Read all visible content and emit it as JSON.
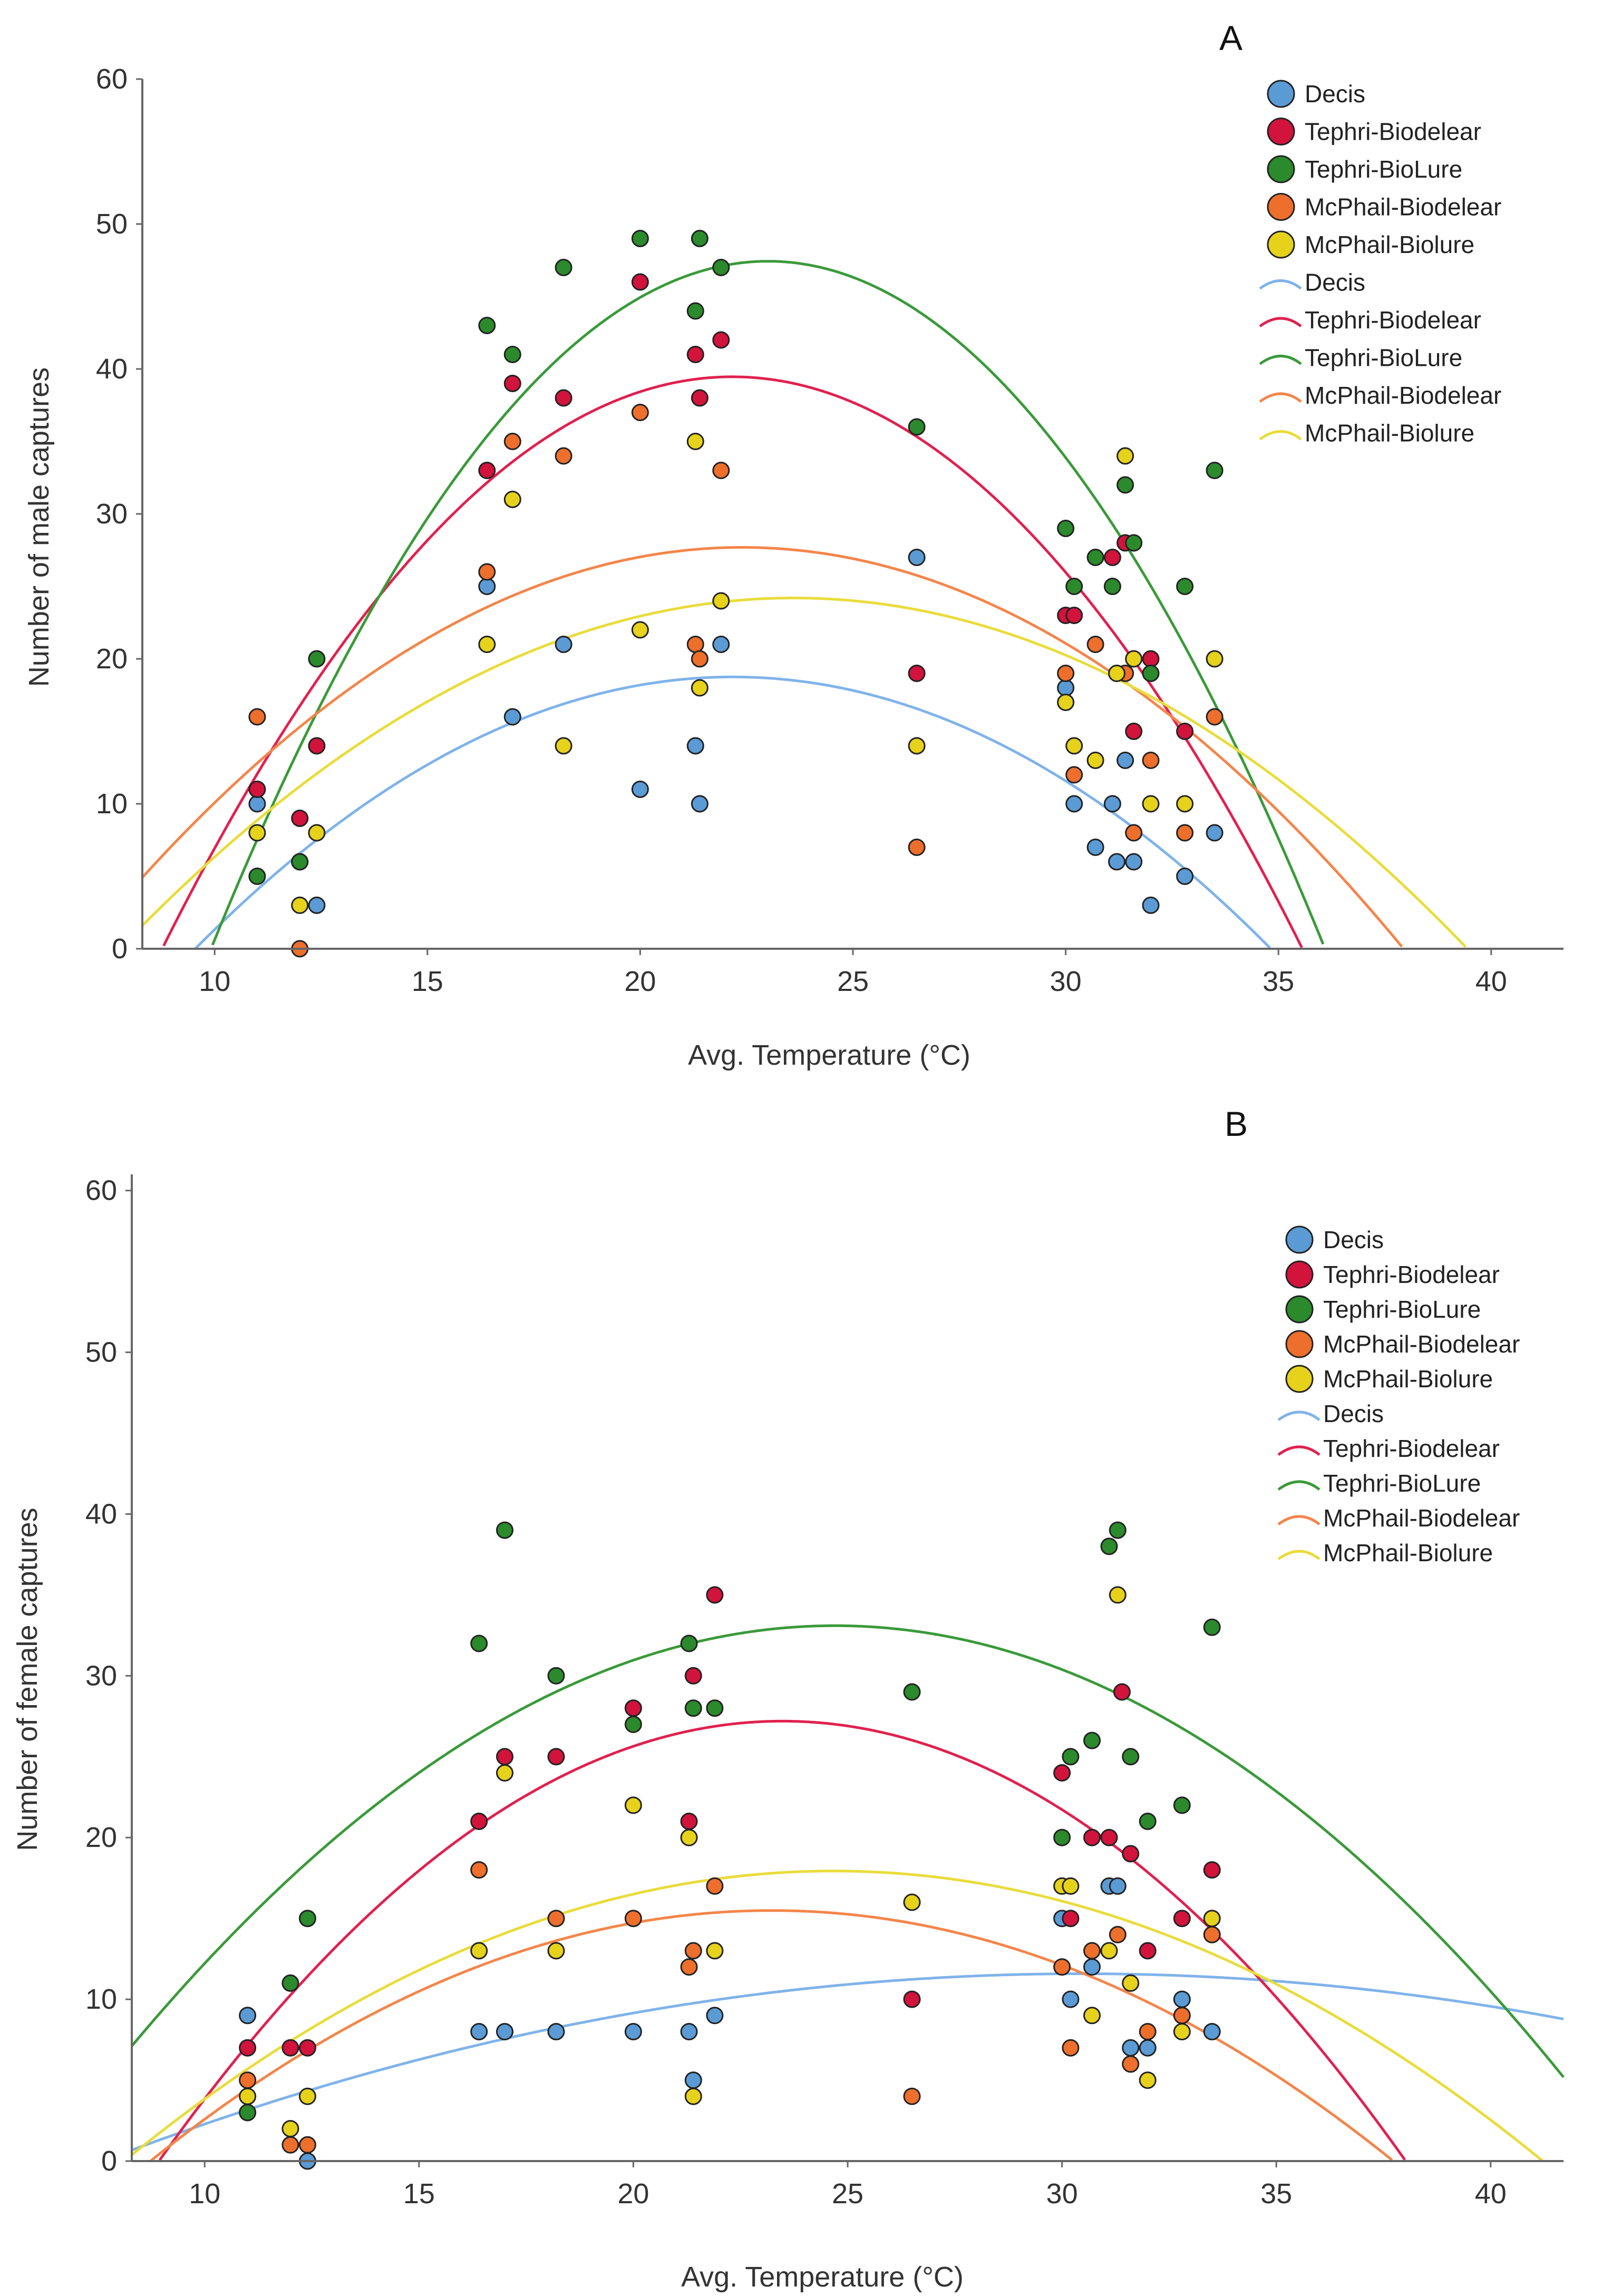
{
  "colors": {
    "Decis": "#5b9bd5",
    "Tephri-Biodelear": "#d2133c",
    "Tephri-BioLure": "#2b8a2b",
    "McPhail-Biodelear": "#ee6f2c",
    "McPhail-Biolure": "#e6d21a",
    "line_Decis": "#7fb3ea",
    "line_Tephri-Biodelear": "#e0214f",
    "line_Tephri-BioLure": "#3a9a3a",
    "line_McPhail-Biodelear": "#f4854a",
    "line_McPhail-Biolure": "#e9dc3a",
    "axis": "#666666",
    "text": "#333333"
  },
  "legend_entries": [
    "Decis",
    "Tephri-Biodelear",
    "Tephri-BioLure",
    "McPhail-Biodelear",
    "McPhail-Biolure"
  ],
  "chart_data": [
    {
      "panel": "A",
      "type": "scatter",
      "title": "A",
      "xlabel": "Avg. Temperature (°C)",
      "ylabel": "Number of male captures",
      "xlim": [
        8.3,
        41.7
      ],
      "ylim": [
        0,
        60
      ],
      "xticks": [
        10,
        15,
        20,
        25,
        30,
        35,
        40
      ],
      "yticks": [
        0,
        10,
        20,
        30,
        40,
        50,
        60
      ],
      "legend_position": "top-right",
      "series": [
        {
          "name": "Decis",
          "points": [
            [
              11,
              10
            ],
            [
              12,
              6
            ],
            [
              12.4,
              3
            ],
            [
              16.4,
              25
            ],
            [
              17,
              16
            ],
            [
              18.2,
              21
            ],
            [
              20,
              11
            ],
            [
              21.3,
              14
            ],
            [
              21.4,
              10
            ],
            [
              21.9,
              21
            ],
            [
              26.5,
              27
            ],
            [
              30,
              18
            ],
            [
              30.2,
              10
            ],
            [
              30.7,
              7
            ],
            [
              31.1,
              10
            ],
            [
              31.2,
              6
            ],
            [
              31.4,
              13
            ],
            [
              31.6,
              6
            ],
            [
              32,
              3
            ],
            [
              32.8,
              5
            ],
            [
              33.5,
              8
            ]
          ]
        },
        {
          "name": "Tephri-Biodelear",
          "points": [
            [
              11,
              11
            ],
            [
              12,
              9
            ],
            [
              12.4,
              14
            ],
            [
              16.4,
              33
            ],
            [
              17,
              39
            ],
            [
              18.2,
              38
            ],
            [
              20,
              46
            ],
            [
              21.3,
              41
            ],
            [
              21.4,
              38
            ],
            [
              21.9,
              42
            ],
            [
              26.5,
              19
            ],
            [
              30,
              23
            ],
            [
              30.2,
              23
            ],
            [
              31.1,
              27
            ],
            [
              31.4,
              28
            ],
            [
              31.6,
              15
            ],
            [
              32,
              20
            ],
            [
              32.8,
              15
            ]
          ]
        },
        {
          "name": "Tephri-BioLure",
          "points": [
            [
              11,
              5
            ],
            [
              12,
              6
            ],
            [
              12.4,
              20
            ],
            [
              16.4,
              43
            ],
            [
              17,
              41
            ],
            [
              18.2,
              47
            ],
            [
              20,
              49
            ],
            [
              21.3,
              44
            ],
            [
              21.4,
              49
            ],
            [
              21.9,
              47
            ],
            [
              26.5,
              36
            ],
            [
              30,
              29
            ],
            [
              30.2,
              25
            ],
            [
              30.7,
              27
            ],
            [
              31.1,
              25
            ],
            [
              31.4,
              32
            ],
            [
              31.6,
              28
            ],
            [
              32,
              19
            ],
            [
              32.8,
              25
            ],
            [
              33.5,
              33
            ]
          ]
        },
        {
          "name": "McPhail-Biodelear",
          "points": [
            [
              11,
              16
            ],
            [
              12,
              0
            ],
            [
              16.4,
              26
            ],
            [
              17,
              35
            ],
            [
              18.2,
              34
            ],
            [
              20,
              37
            ],
            [
              21.3,
              21
            ],
            [
              21.4,
              20
            ],
            [
              21.9,
              33
            ],
            [
              26.5,
              7
            ],
            [
              30,
              19
            ],
            [
              30.2,
              12
            ],
            [
              30.7,
              21
            ],
            [
              31.4,
              19
            ],
            [
              31.6,
              8
            ],
            [
              32,
              13
            ],
            [
              32.8,
              8
            ],
            [
              33.5,
              16
            ]
          ]
        },
        {
          "name": "McPhail-Biolure",
          "points": [
            [
              11,
              8
            ],
            [
              12,
              3
            ],
            [
              12.4,
              8
            ],
            [
              16.4,
              21
            ],
            [
              17,
              31
            ],
            [
              18.2,
              14
            ],
            [
              20,
              22
            ],
            [
              21.3,
              35
            ],
            [
              21.4,
              18
            ],
            [
              21.9,
              24
            ],
            [
              26.5,
              14
            ],
            [
              30,
              17
            ],
            [
              30.2,
              14
            ],
            [
              30.7,
              13
            ],
            [
              31.2,
              19
            ],
            [
              31.4,
              34
            ],
            [
              31.6,
              20
            ],
            [
              32,
              10
            ],
            [
              32.8,
              10
            ],
            [
              33.5,
              20
            ]
          ]
        }
      ],
      "fits": [
        {
          "name": "Decis",
          "coef": [
            -0.1174,
            5.2084,
            -39.015
          ]
        },
        {
          "name": "Tephri-Biodelear",
          "coef": [
            -0.2198,
            9.7437,
            -68.524
          ]
        },
        {
          "name": "Tephri-BioLure",
          "coef": [
            -0.2768,
            12.735,
            -99.047
          ]
        },
        {
          "name": "McPhail-Biodelear",
          "coef": [
            -0.1146,
            5.1334,
            -29.796
          ]
        },
        {
          "name": "McPhail-Biolure",
          "coef": [
            -0.0965,
            4.5559,
            -29.573
          ]
        }
      ]
    },
    {
      "panel": "B",
      "type": "scatter",
      "title": "B",
      "xlabel": "Avg. Temperature (°C)",
      "ylabel": "Number of female captures",
      "xlim": [
        8.3,
        41.7
      ],
      "ylim": [
        0,
        61
      ],
      "xticks": [
        10,
        15,
        20,
        25,
        30,
        35,
        40
      ],
      "yticks": [
        0,
        10,
        20,
        30,
        40,
        50,
        60
      ],
      "legend_position": "top-right",
      "series": [
        {
          "name": "Decis",
          "points": [
            [
              11,
              9
            ],
            [
              11,
              3
            ],
            [
              12.4,
              0
            ],
            [
              16.4,
              8
            ],
            [
              17,
              8
            ],
            [
              18.2,
              8
            ],
            [
              20,
              8
            ],
            [
              21.3,
              8
            ],
            [
              21.4,
              5
            ],
            [
              21.9,
              9
            ],
            [
              30,
              15
            ],
            [
              30.2,
              10
            ],
            [
              30.7,
              12
            ],
            [
              31.1,
              17
            ],
            [
              31.3,
              17
            ],
            [
              31.6,
              7
            ],
            [
              32,
              7
            ],
            [
              32.8,
              10
            ],
            [
              33.5,
              8
            ]
          ]
        },
        {
          "name": "Tephri-Biodelear",
          "points": [
            [
              11,
              7
            ],
            [
              12,
              7
            ],
            [
              12.4,
              7
            ],
            [
              16.4,
              21
            ],
            [
              17,
              25
            ],
            [
              18.2,
              25
            ],
            [
              20,
              28
            ],
            [
              21.3,
              21
            ],
            [
              21.4,
              30
            ],
            [
              21.9,
              35
            ],
            [
              26.5,
              10
            ],
            [
              30,
              24
            ],
            [
              30.2,
              15
            ],
            [
              30.7,
              20
            ],
            [
              31.1,
              20
            ],
            [
              31.4,
              29
            ],
            [
              31.6,
              19
            ],
            [
              32,
              13
            ],
            [
              32.8,
              15
            ],
            [
              33.5,
              18
            ]
          ]
        },
        {
          "name": "Tephri-BioLure",
          "points": [
            [
              11,
              3
            ],
            [
              12,
              11
            ],
            [
              12.4,
              15
            ],
            [
              16.4,
              32
            ],
            [
              17,
              39
            ],
            [
              18.2,
              30
            ],
            [
              20,
              27
            ],
            [
              21.3,
              32
            ],
            [
              21.4,
              28
            ],
            [
              21.9,
              28
            ],
            [
              26.5,
              29
            ],
            [
              30,
              20
            ],
            [
              30.2,
              25
            ],
            [
              30.7,
              26
            ],
            [
              31.1,
              38
            ],
            [
              31.3,
              39
            ],
            [
              31.6,
              25
            ],
            [
              32,
              21
            ],
            [
              32.8,
              22
            ],
            [
              33.5,
              33
            ]
          ]
        },
        {
          "name": "McPhail-Biodelear",
          "points": [
            [
              11,
              5
            ],
            [
              12,
              1
            ],
            [
              12.4,
              1
            ],
            [
              16.4,
              18
            ],
            [
              18.2,
              15
            ],
            [
              20,
              15
            ],
            [
              21.3,
              12
            ],
            [
              21.4,
              13
            ],
            [
              21.9,
              17
            ],
            [
              26.5,
              4
            ],
            [
              30,
              12
            ],
            [
              30.2,
              7
            ],
            [
              30.7,
              13
            ],
            [
              31.3,
              14
            ],
            [
              31.6,
              6
            ],
            [
              32,
              8
            ],
            [
              32.8,
              9
            ],
            [
              33.5,
              14
            ]
          ]
        },
        {
          "name": "McPhail-Biolure",
          "points": [
            [
              11,
              4
            ],
            [
              12,
              2
            ],
            [
              12.4,
              4
            ],
            [
              16.4,
              13
            ],
            [
              17,
              24
            ],
            [
              18.2,
              13
            ],
            [
              20,
              22
            ],
            [
              21.3,
              20
            ],
            [
              21.4,
              4
            ],
            [
              21.9,
              13
            ],
            [
              26.5,
              16
            ],
            [
              30,
              17
            ],
            [
              30.2,
              17
            ],
            [
              30.7,
              9
            ],
            [
              31.1,
              13
            ],
            [
              31.3,
              35
            ],
            [
              31.6,
              11
            ],
            [
              32,
              5
            ],
            [
              32.8,
              8
            ],
            [
              33.5,
              15
            ]
          ]
        }
      ],
      "fits": [
        {
          "name": "Decis",
          "coef": [
            -0.0222,
            1.3526,
            -9.021
          ]
        },
        {
          "name": "Tephri-Biodelear",
          "coef": [
            -0.1286,
            6.0382,
            -43.682
          ]
        },
        {
          "name": "Tephri-BioLure",
          "coef": [
            -0.0966,
            4.7724,
            -25.846
          ]
        },
        {
          "name": "McPhail-Biodelear",
          "coef": [
            -0.0737,
            3.4245,
            -24.291
          ]
        },
        {
          "name": "McPhail-Biolure",
          "coef": [
            -0.0655,
            3.2318,
            -21.934
          ]
        }
      ]
    }
  ]
}
